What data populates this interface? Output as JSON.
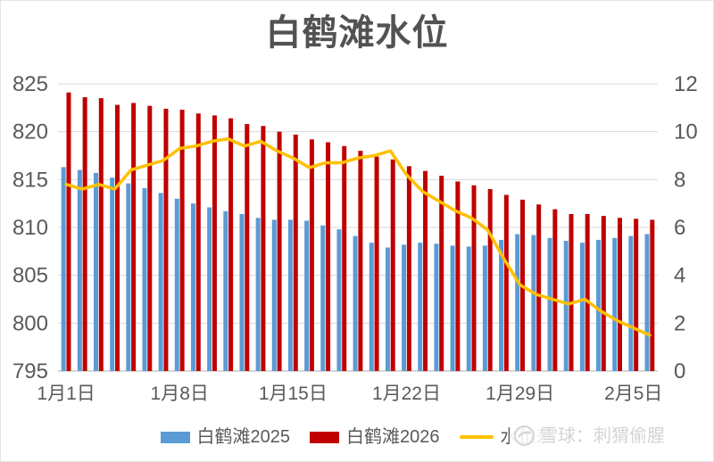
{
  "chart_data": {
    "type": "combo-bar-line",
    "title": "白鹤滩水位",
    "categories": [
      "1月1日",
      "1月2日",
      "1月3日",
      "1月4日",
      "1月5日",
      "1月6日",
      "1月7日",
      "1月8日",
      "1月9日",
      "1月10日",
      "1月11日",
      "1月12日",
      "1月13日",
      "1月14日",
      "1月15日",
      "1月16日",
      "1月17日",
      "1月18日",
      "1月19日",
      "1月20日",
      "1月21日",
      "1月22日",
      "1月23日",
      "1月24日",
      "1月25日",
      "1月26日",
      "1月27日",
      "1月28日",
      "1月29日",
      "1月30日",
      "1月31日",
      "2月1日",
      "2月2日",
      "2月3日",
      "2月4日",
      "2月5日",
      "2月6日"
    ],
    "x_tick_labels": [
      "1月1日",
      "1月8日",
      "1月15日",
      "1月22日",
      "1月29日",
      "2月5日"
    ],
    "x_tick_indices": [
      0,
      7,
      14,
      21,
      28,
      35
    ],
    "left_axis": {
      "min": 795,
      "max": 825,
      "step": 5,
      "ticks": [
        825,
        820,
        815,
        810,
        805,
        800,
        795
      ]
    },
    "right_axis": {
      "min": 0,
      "max": 12,
      "step": 2,
      "ticks": [
        12,
        10,
        8,
        6,
        4,
        2,
        0
      ]
    },
    "gridlines": true,
    "legend_position": "bottom",
    "series": [
      {
        "name": "白鹤滩2025",
        "type": "bar",
        "axis": "left",
        "color": "#5B9BD5",
        "values": [
          816.3,
          816.0,
          815.7,
          815.2,
          814.6,
          814.1,
          813.6,
          813.0,
          812.5,
          812.1,
          811.7,
          811.4,
          811.0,
          810.8,
          810.8,
          810.7,
          810.2,
          809.8,
          809.1,
          808.4,
          807.9,
          808.2,
          808.4,
          808.3,
          808.1,
          808.0,
          808.1,
          808.7,
          809.3,
          809.2,
          808.9,
          808.6,
          808.4,
          808.7,
          808.9,
          809.1,
          809.3
        ]
      },
      {
        "name": "白鹤滩2026",
        "type": "bar",
        "axis": "left",
        "color": "#C00000",
        "values": [
          824.1,
          823.6,
          823.5,
          822.8,
          823.0,
          822.7,
          822.4,
          822.3,
          821.9,
          821.7,
          821.4,
          820.8,
          820.6,
          820.0,
          819.7,
          819.2,
          818.9,
          818.5,
          818.0,
          817.4,
          817.1,
          816.4,
          815.9,
          815.4,
          814.8,
          814.4,
          814.0,
          813.4,
          812.9,
          812.4,
          811.9,
          811.4,
          811.4,
          811.2,
          811.0,
          810.9,
          810.8
        ]
      },
      {
        "name": "水位差",
        "type": "line",
        "axis": "right",
        "color": "#FFC000",
        "values": [
          7.8,
          7.6,
          7.8,
          7.6,
          8.4,
          8.6,
          8.8,
          9.3,
          9.4,
          9.6,
          9.7,
          9.4,
          9.6,
          9.2,
          8.9,
          8.5,
          8.7,
          8.7,
          8.9,
          9.0,
          9.2,
          8.2,
          7.5,
          7.1,
          6.7,
          6.4,
          5.9,
          4.7,
          3.6,
          3.2,
          3.0,
          2.8,
          3.0,
          2.5,
          2.1,
          1.8,
          1.5
        ]
      }
    ]
  },
  "watermark": {
    "text": "雪球：刺猬偷腥"
  },
  "colors": {
    "grid": "#D9D9D9",
    "axis_line": "#BFBFBF",
    "axis_text": "#595959",
    "title_text": "#525252",
    "watermark_text": "#D4D4D4",
    "background": "#FFFFFF"
  }
}
